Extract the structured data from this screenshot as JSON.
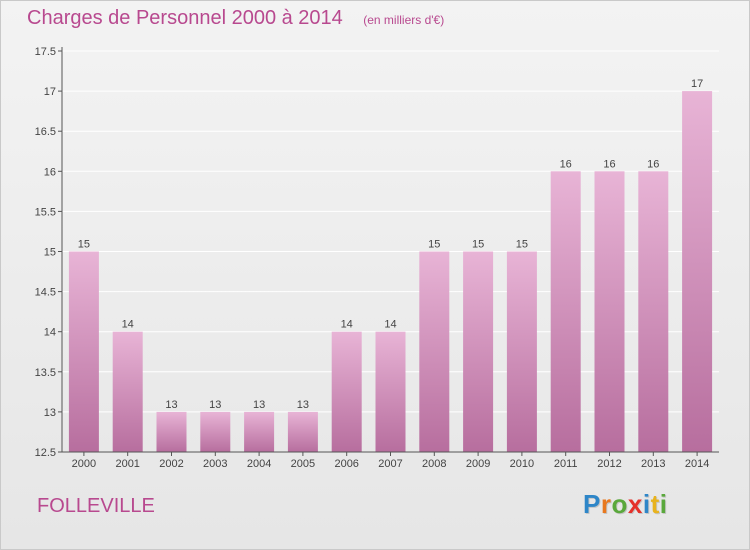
{
  "title": "Charges de Personnel 2000 à 2014",
  "subtitle": "(en milliers d'€)",
  "city": "FOLLEVILLE",
  "brand": {
    "letters": [
      {
        "ch": "P",
        "color": "#2e86c8"
      },
      {
        "ch": "r",
        "color": "#e8781e"
      },
      {
        "ch": "o",
        "color": "#5aa83c"
      },
      {
        "ch": "x",
        "color": "#e5312a"
      },
      {
        "ch": "i",
        "color": "#2e86c8"
      },
      {
        "ch": "t",
        "color": "#e8b31e"
      },
      {
        "ch": "i",
        "color": "#5aa83c"
      }
    ]
  },
  "colors": {
    "bar": "#d68fbf",
    "bar_top": "#e8b4d6",
    "bar_bottom": "#b76e9e",
    "text": "#b8498f",
    "axis": "#555555",
    "grid": "#ffffff"
  },
  "chart_data": {
    "type": "bar",
    "categories": [
      "2000",
      "2001",
      "2002",
      "2003",
      "2004",
      "2005",
      "2006",
      "2007",
      "2008",
      "2009",
      "2010",
      "2011",
      "2012",
      "2013",
      "2014"
    ],
    "values": [
      15,
      14,
      13,
      13,
      13,
      13,
      14,
      14,
      15,
      15,
      15,
      16,
      16,
      16,
      17
    ],
    "data_labels": [
      "15",
      "14",
      "13",
      "13",
      "13",
      "13",
      "14",
      "14",
      "15",
      "15",
      "15",
      "16",
      "16",
      "16",
      "17"
    ],
    "ylim": [
      12.5,
      17.5
    ],
    "yticks": [
      12.5,
      13,
      13.5,
      14,
      14.5,
      15,
      15.5,
      16,
      16.5,
      17,
      17.5
    ],
    "ytick_labels": [
      "12.5",
      "13",
      "13.5",
      "14",
      "14.5",
      "15",
      "15.5",
      "16",
      "16.5",
      "17",
      "17.5"
    ],
    "grid": true
  }
}
